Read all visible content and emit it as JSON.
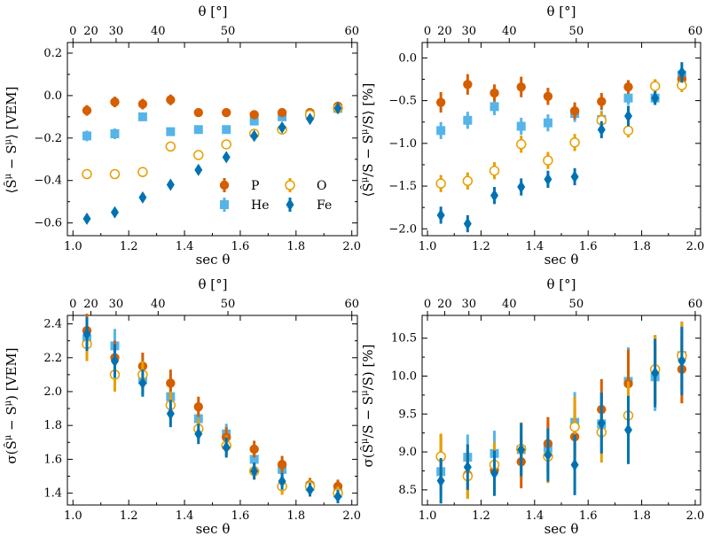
{
  "colors": {
    "P": "#d55e00",
    "He": "#56b4e9",
    "O": "#e69f00",
    "Fe": "#0072b2"
  },
  "legend": {
    "P": "P",
    "He": "He",
    "O": "O",
    "Fe": "Fe"
  },
  "x_label": "sec θ",
  "top_label": "θ [°]",
  "top_ticks": [
    "0",
    "20",
    "30",
    "40",
    "50",
    "60"
  ],
  "top_tick_values_deg": [
    0,
    20,
    30,
    40,
    50,
    60
  ],
  "x_ticks": [
    1.0,
    1.2,
    1.4,
    1.6,
    1.8,
    2.0
  ],
  "chart_data": [
    {
      "type": "scatter",
      "id": "mean-vem",
      "ylabel": "⟨S^μ_pred − S^μ⟩ [VEM]",
      "xlim": [
        0.98,
        2.02
      ],
      "ylim": [
        -0.66,
        0.25
      ],
      "y_ticks": [
        -0.6,
        -0.4,
        -0.2,
        0.0,
        0.2
      ],
      "y_tick_labels": [
        "−0.6",
        "−0.4",
        "−0.2",
        "0.0",
        "0.2"
      ],
      "legend": true,
      "x": [
        1.05,
        1.15,
        1.25,
        1.35,
        1.45,
        1.55,
        1.65,
        1.75,
        1.85,
        1.95
      ],
      "series": [
        {
          "name": "P",
          "values": [
            -0.07,
            -0.03,
            -0.04,
            -0.02,
            -0.08,
            -0.08,
            -0.09,
            -0.08,
            -0.08,
            -0.05
          ],
          "err": [
            0.025,
            0.025,
            0.025,
            0.025,
            0.015,
            0.015,
            0.015,
            0.015,
            0.015,
            0.015
          ]
        },
        {
          "name": "He",
          "values": [
            -0.19,
            -0.18,
            -0.1,
            -0.17,
            -0.16,
            -0.16,
            -0.12,
            -0.1,
            -0.09,
            -0.06
          ],
          "err": [
            0.025,
            0.025,
            0.02,
            0.02,
            0.015,
            0.015,
            0.015,
            0.015,
            0.015,
            0.015
          ]
        },
        {
          "name": "O",
          "values": [
            -0.37,
            -0.37,
            -0.36,
            -0.24,
            -0.28,
            -0.23,
            -0.18,
            -0.16,
            -0.09,
            -0.06
          ],
          "err": [
            0.02,
            0.02,
            0.015,
            0.015,
            0.015,
            0.015,
            0.015,
            0.015,
            0.015,
            0.015
          ]
        },
        {
          "name": "Fe",
          "values": [
            -0.58,
            -0.55,
            -0.48,
            -0.42,
            -0.35,
            -0.29,
            -0.19,
            -0.15,
            -0.11,
            -0.06
          ],
          "err": [
            0.02,
            0.02,
            0.015,
            0.015,
            0.015,
            0.015,
            0.015,
            0.015,
            0.015,
            0.015
          ]
        }
      ]
    },
    {
      "type": "scatter",
      "id": "mean-percent",
      "ylabel": "⟨S^μ_pred/S − S^μ/S⟩ [%]",
      "xlim": [
        0.98,
        2.02
      ],
      "ylim": [
        -2.08,
        0.18
      ],
      "y_ticks": [
        -2.0,
        -1.5,
        -1.0,
        -0.5,
        0.0
      ],
      "y_tick_labels": [
        "−2.0",
        "−1.5",
        "−1.0",
        "−0.5",
        "0.0"
      ],
      "legend": false,
      "x": [
        1.05,
        1.15,
        1.25,
        1.35,
        1.45,
        1.55,
        1.65,
        1.75,
        1.85,
        1.95
      ],
      "series": [
        {
          "name": "P",
          "values": [
            -0.52,
            -0.31,
            -0.41,
            -0.34,
            -0.45,
            -0.62,
            -0.51,
            -0.34,
            -0.33,
            -0.25
          ],
          "err": [
            0.12,
            0.12,
            0.1,
            0.12,
            0.1,
            0.1,
            0.1,
            0.08,
            0.08,
            0.08
          ]
        },
        {
          "name": "He",
          "values": [
            -0.85,
            -0.73,
            -0.57,
            -0.8,
            -0.76,
            -0.65,
            -0.72,
            -0.47,
            -0.47,
            -0.2
          ],
          "err": [
            0.1,
            0.1,
            0.1,
            0.1,
            0.1,
            0.1,
            0.1,
            0.08,
            0.08,
            0.08
          ]
        },
        {
          "name": "O",
          "values": [
            -1.47,
            -1.44,
            -1.32,
            -1.01,
            -1.2,
            -0.99,
            -0.73,
            -0.85,
            -0.33,
            -0.32
          ],
          "err": [
            0.1,
            0.1,
            0.1,
            0.1,
            0.1,
            0.1,
            0.1,
            0.08,
            0.08,
            0.08
          ]
        },
        {
          "name": "Fe",
          "values": [
            -1.84,
            -1.94,
            -1.61,
            -1.51,
            -1.42,
            -1.39,
            -0.84,
            -0.68,
            -0.47,
            -0.17
          ],
          "err": [
            0.1,
            0.1,
            0.1,
            0.1,
            0.1,
            0.1,
            0.1,
            0.12,
            0.08,
            0.12
          ]
        }
      ]
    },
    {
      "type": "scatter",
      "id": "sigma-vem",
      "ylabel": "σ(S^μ_pred − S^μ) [VEM]",
      "xlim": [
        0.98,
        2.02
      ],
      "ylim": [
        1.33,
        2.45
      ],
      "y_ticks": [
        1.4,
        1.6,
        1.8,
        2.0,
        2.2,
        2.4
      ],
      "y_tick_labels": [
        "1.4",
        "1.6",
        "1.8",
        "2.0",
        "2.2",
        "2.4"
      ],
      "legend": false,
      "x": [
        1.05,
        1.15,
        1.25,
        1.35,
        1.45,
        1.55,
        1.65,
        1.75,
        1.85,
        1.95
      ],
      "series": [
        {
          "name": "P",
          "values": [
            2.36,
            2.2,
            2.15,
            2.05,
            1.91,
            1.73,
            1.66,
            1.57,
            1.45,
            1.44
          ],
          "err": [
            0.1,
            0.1,
            0.08,
            0.08,
            0.06,
            0.06,
            0.05,
            0.05,
            0.04,
            0.04
          ]
        },
        {
          "name": "He",
          "values": [
            2.31,
            2.27,
            2.07,
            1.97,
            1.84,
            1.75,
            1.6,
            1.54,
            1.44,
            1.4
          ],
          "err": [
            0.1,
            0.1,
            0.08,
            0.08,
            0.06,
            0.06,
            0.05,
            0.05,
            0.04,
            0.04
          ]
        },
        {
          "name": "O",
          "values": [
            2.28,
            2.1,
            2.1,
            1.92,
            1.78,
            1.68,
            1.53,
            1.44,
            1.44,
            1.4
          ],
          "err": [
            0.1,
            0.1,
            0.08,
            0.08,
            0.06,
            0.06,
            0.05,
            0.05,
            0.04,
            0.04
          ]
        },
        {
          "name": "Fe",
          "values": [
            2.34,
            2.18,
            2.05,
            1.87,
            1.75,
            1.67,
            1.53,
            1.47,
            1.42,
            1.38
          ],
          "err": [
            0.1,
            0.1,
            0.08,
            0.08,
            0.06,
            0.06,
            0.05,
            0.05,
            0.04,
            0.04
          ]
        }
      ]
    },
    {
      "type": "scatter",
      "id": "sigma-percent",
      "ylabel": "σ(S^μ_pred/S − S^μ/S) [%]",
      "xlim": [
        0.98,
        2.02
      ],
      "ylim": [
        8.3,
        10.8
      ],
      "y_ticks": [
        8.5,
        9.0,
        9.5,
        10.0,
        10.5
      ],
      "y_tick_labels": [
        "8.5",
        "9.0",
        "9.5",
        "10.0",
        "10.5"
      ],
      "legend": false,
      "x": [
        1.05,
        1.15,
        1.25,
        1.35,
        1.45,
        1.55,
        1.65,
        1.75,
        1.85,
        1.95
      ],
      "series": [
        {
          "name": "P",
          "values": [
            8.93,
            8.7,
            8.76,
            8.87,
            9.11,
            9.2,
            9.56,
            9.9,
            10.09,
            10.09
          ],
          "err": [
            0.3,
            0.3,
            0.3,
            0.35,
            0.35,
            0.4,
            0.4,
            0.45,
            0.45,
            0.45
          ]
        },
        {
          "name": "He",
          "values": [
            8.74,
            8.93,
            8.98,
            9.03,
            9.05,
            9.39,
            9.37,
            9.93,
            9.99,
            10.27
          ],
          "err": [
            0.3,
            0.3,
            0.3,
            0.35,
            0.35,
            0.4,
            0.4,
            0.45,
            0.45,
            0.45
          ]
        },
        {
          "name": "O",
          "values": [
            8.94,
            8.68,
            8.83,
            9.04,
            8.94,
            9.33,
            9.26,
            9.48,
            10.09,
            10.27
          ],
          "err": [
            0.3,
            0.3,
            0.3,
            0.35,
            0.35,
            0.4,
            0.4,
            0.45,
            0.45,
            0.45
          ]
        },
        {
          "name": "Fe",
          "values": [
            8.62,
            8.8,
            8.72,
            9.03,
            8.96,
            8.83,
            9.38,
            9.29,
            10.04,
            10.2
          ],
          "err": [
            0.3,
            0.3,
            0.3,
            0.35,
            0.35,
            0.4,
            0.4,
            0.45,
            0.45,
            0.45
          ]
        }
      ]
    }
  ]
}
